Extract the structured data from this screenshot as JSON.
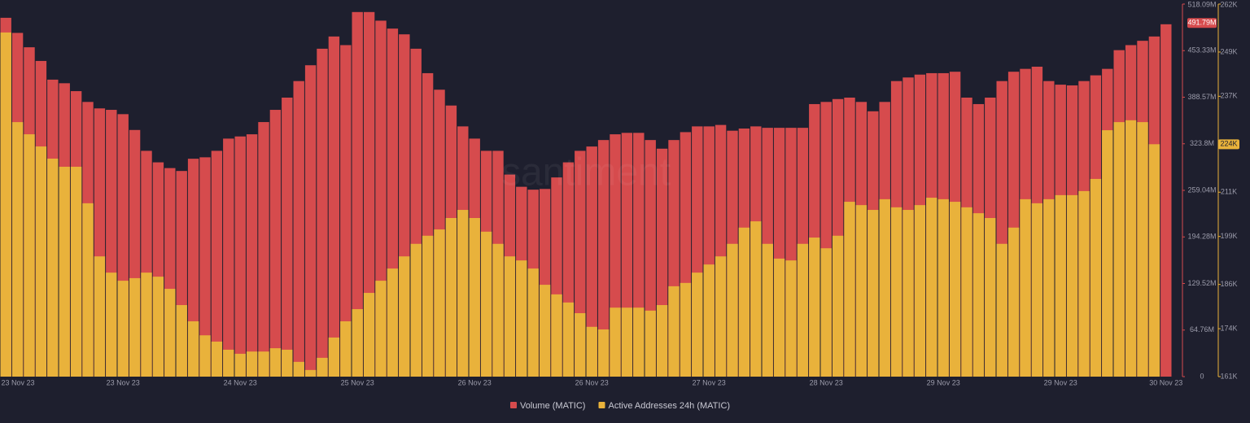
{
  "chart_data": {
    "type": "bar",
    "watermark": "santiment",
    "categories": [
      null,
      "23 Nov 23",
      null,
      null,
      null,
      null,
      null,
      null,
      null,
      null,
      "23 Nov 23",
      null,
      null,
      null,
      null,
      null,
      null,
      null,
      null,
      null,
      "24 Nov 23",
      null,
      null,
      null,
      null,
      null,
      null,
      null,
      null,
      null,
      "25 Nov 23",
      null,
      null,
      null,
      null,
      null,
      null,
      null,
      null,
      null,
      "26 Nov 23",
      null,
      null,
      null,
      null,
      null,
      null,
      null,
      null,
      null,
      "26 Nov 23",
      null,
      null,
      null,
      null,
      null,
      null,
      null,
      null,
      null,
      "27 Nov 23",
      null,
      null,
      null,
      null,
      null,
      null,
      null,
      null,
      null,
      "28 Nov 23",
      null,
      null,
      null,
      null,
      null,
      null,
      null,
      null,
      null,
      "29 Nov 23",
      null,
      null,
      null,
      null,
      null,
      null,
      null,
      null,
      null,
      "29 Nov 23",
      null,
      null,
      null,
      null,
      null,
      null,
      null,
      null,
      "30 Nov 23"
    ],
    "series": [
      {
        "name": "Volume (MATIC)",
        "color": "#d64b4d",
        "axis": "y",
        "last_value": {
          "value": 491.79,
          "label": "491.79M"
        },
        "values": [
          499,
          478,
          458,
          439,
          413,
          408,
          397,
          382,
          373,
          371,
          365,
          343,
          314,
          298,
          290,
          286,
          303,
          305,
          314,
          331,
          334,
          337,
          354,
          371,
          388,
          411,
          433,
          456,
          473,
          461,
          507,
          507,
          495,
          484,
          476,
          456,
          422,
          399,
          377,
          348,
          331,
          314,
          314,
          281,
          264,
          260,
          261,
          277,
          298,
          314,
          320,
          329,
          337,
          339,
          339,
          329,
          317,
          329,
          340,
          348,
          348,
          350,
          342,
          345,
          348,
          346,
          346,
          346,
          346,
          379,
          382,
          386,
          388,
          382,
          369,
          382,
          411,
          416,
          420,
          422,
          422,
          424,
          388,
          379,
          388,
          411,
          424,
          428,
          431,
          411,
          406,
          405,
          411,
          419,
          428,
          454,
          461,
          467,
          473,
          490
        ]
      },
      {
        "name": "Active Addresses 24h (MATIC)",
        "color": "#e9b23b",
        "axis": "y2",
        "last_value": {
          "value": 224,
          "label": "224K"
        },
        "values": [
          254.3,
          230.0,
          226.7,
          223.4,
          220.1,
          217.9,
          217.9,
          208.0,
          193.6,
          189.2,
          187.0,
          187.7,
          189.2,
          188.1,
          184.8,
          180.4,
          176.0,
          172.2,
          170.5,
          168.3,
          167.2,
          167.8,
          167.8,
          168.7,
          168.3,
          165.0,
          162.8,
          166.1,
          171.6,
          176.0,
          179.3,
          183.7,
          187.0,
          190.3,
          193.6,
          197.0,
          199.2,
          200.9,
          204.0,
          206.2,
          204.0,
          200.3,
          197.0,
          193.6,
          192.5,
          190.3,
          185.9,
          183.3,
          181.1,
          178.2,
          174.5,
          173.8,
          179.7,
          179.7,
          179.7,
          178.9,
          180.4,
          185.5,
          186.4,
          189.2,
          191.4,
          193.6,
          197.0,
          201.4,
          203.1,
          197.0,
          193.0,
          192.5,
          197.0,
          198.7,
          195.8,
          199.2,
          208.4,
          207.5,
          206.2,
          209.1,
          206.9,
          206.2,
          207.5,
          209.5,
          209.1,
          208.4,
          206.9,
          205.3,
          204.0,
          197.0,
          201.4,
          209.1,
          208.0,
          209.1,
          210.2,
          210.2,
          211.3,
          214.6,
          227.8,
          230.0,
          230.5,
          230.0,
          224.0,
          null
        ]
      }
    ],
    "ylim": [
      0,
      518.09
    ],
    "yticks": [
      0,
      {
        "value": 64.76,
        "label": "64.76M"
      },
      {
        "value": 129.52,
        "label": "129.52M"
      },
      {
        "value": 194.28,
        "label": "194.28M"
      },
      {
        "value": 259.04,
        "label": "259.04M"
      },
      {
        "value": 323.8,
        "label": "323.8M"
      },
      {
        "value": 388.57,
        "label": "388.57M"
      },
      {
        "value": 453.33,
        "label": "453.33M"
      },
      {
        "value": 518.09,
        "label": "518.09M"
      }
    ],
    "y2lim": [
      161,
      262
    ],
    "y2ticks": [
      {
        "value": 161,
        "label": "161K"
      },
      {
        "value": 174,
        "label": "174K"
      },
      {
        "value": 186,
        "label": "186K"
      },
      {
        "value": 199,
        "label": "199K"
      },
      {
        "value": 211,
        "label": "211K"
      },
      {
        "value": 224,
        "label": "224K"
      },
      {
        "value": 237,
        "label": "237K"
      },
      {
        "value": 249,
        "label": "249K"
      },
      {
        "value": 262,
        "label": "262K"
      }
    ],
    "grid": false
  }
}
